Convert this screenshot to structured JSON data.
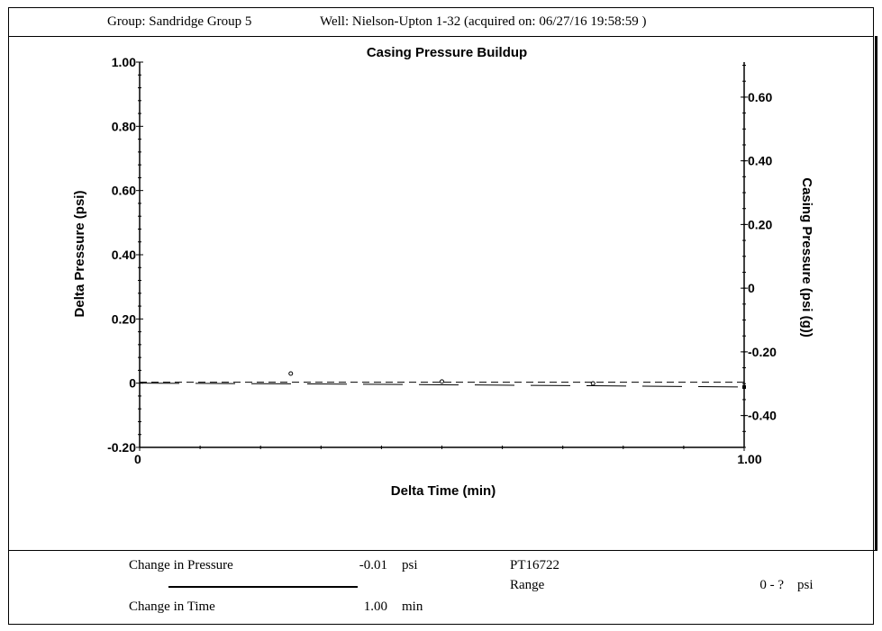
{
  "header": {
    "group": "Group: Sandridge Group 5",
    "well": "Well: Nielson-Upton 1-32 (acquired on: 06/27/16 19:58:59 )"
  },
  "chart_data": {
    "type": "line",
    "title": "Casing Pressure Buildup",
    "xlabel": "Delta Time (min)",
    "ylabel": "Delta Pressure (psi)",
    "y2label": "Casing Pressure (psi (g))",
    "xlim": [
      0,
      1.0
    ],
    "ylim": [
      -0.2,
      1.0
    ],
    "y2lim": [
      -0.5,
      0.71
    ],
    "x_ticks": [
      "0",
      "1.00"
    ],
    "y_ticks": [
      {
        "v": -0.2,
        "label": "-0.20"
      },
      {
        "v": 0,
        "label": "0"
      },
      {
        "v": 0.2,
        "label": "0.20"
      },
      {
        "v": 0.4,
        "label": "0.40"
      },
      {
        "v": 0.6,
        "label": "0.60"
      },
      {
        "v": 0.8,
        "label": "0.80"
      },
      {
        "v": 1.0,
        "label": "1.00"
      }
    ],
    "y2_ticks": [
      {
        "v": -0.4,
        "label": "-0.40"
      },
      {
        "v": -0.2,
        "label": "-0.20"
      },
      {
        "v": 0,
        "label": "0"
      },
      {
        "v": 0.2,
        "label": "0.20"
      },
      {
        "v": 0.4,
        "label": "0.40"
      },
      {
        "v": 0.6,
        "label": "0.60"
      }
    ],
    "series": [
      {
        "style": "long-dash",
        "x": [
          0,
          0.25,
          0.5,
          0.75,
          1.0
        ],
        "y": [
          0,
          -0.002,
          -0.005,
          -0.008,
          -0.012
        ]
      },
      {
        "style": "short-dash",
        "x": [
          0,
          1.0
        ],
        "y": [
          0.003,
          0.003
        ]
      },
      {
        "style": "markers",
        "x": [
          0.25,
          0.5,
          0.75
        ],
        "y": [
          0.03,
          0.005,
          -0.001
        ]
      }
    ]
  },
  "footer": {
    "change_pressure_label": "Change in Pressure",
    "change_pressure_value": "-0.01",
    "change_pressure_unit": "psi",
    "change_time_label": "Change in Time",
    "change_time_value": "1.00",
    "change_time_unit": "min",
    "sensor_id": "PT16722",
    "range_label": "Range",
    "range_value": "0 - ?",
    "range_unit": "psi"
  }
}
